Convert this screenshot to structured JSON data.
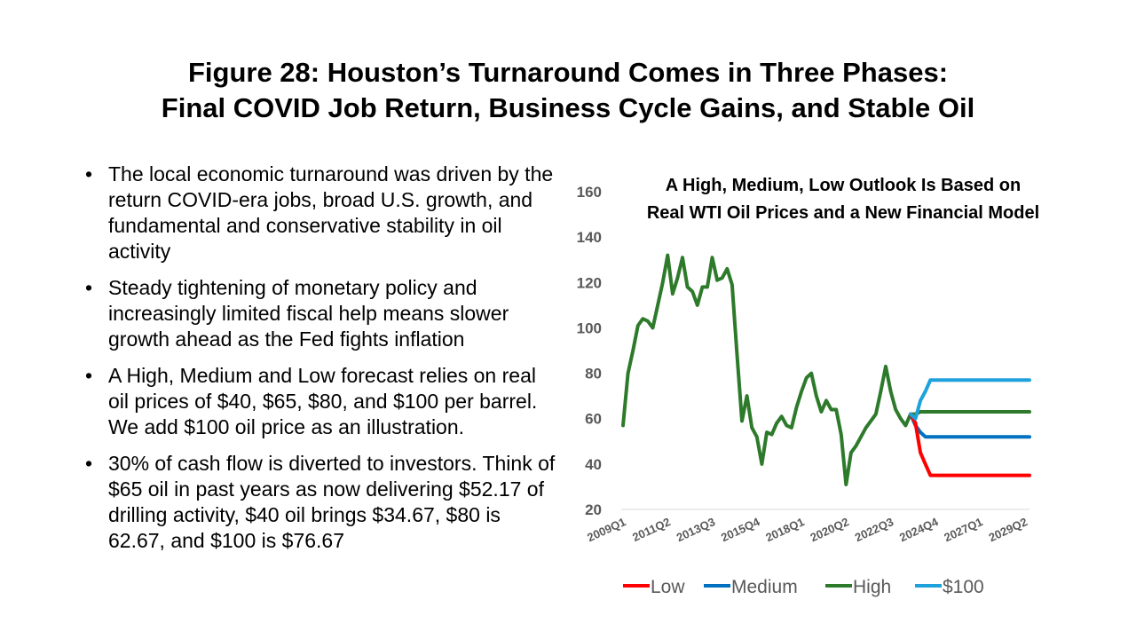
{
  "slide": {
    "title_line1": "Figure 28: Houston’s Turnaround Comes in Three Phases:",
    "title_line2": "Final COVID Job Return, Business Cycle Gains, and Stable Oil",
    "bullets": [
      "The local economic turnaround was driven by the return COVID-era jobs, broad U.S. growth, and fundamental and conservative stability in oil activity",
      "Steady tightening of monetary policy and increasingly limited fiscal help means slower growth ahead as the Fed fights inflation",
      "A High, Medium and Low forecast relies on real oil prices of $40, $65, $80, and $100 per barrel. We add $100 oil price as an illustration.",
      "30% of cash flow is diverted to investors. Think of $65 oil in past years as now delivering $52.17 of drilling activity, $40 oil brings $34.67, $80 is 62.67, and $100 is $76.67"
    ]
  },
  "chart_data": {
    "type": "line",
    "title_line1": "A High, Medium, Low Outlook Is Based on",
    "title_line2": "Real WTI Oil Prices and a New Financial Model",
    "ylim": [
      20,
      160
    ],
    "yticks": [
      20,
      40,
      60,
      80,
      100,
      120,
      140,
      160
    ],
    "xlim": [
      0,
      82
    ],
    "xticks": [
      {
        "i": 0,
        "label": "2009Q1"
      },
      {
        "i": 9,
        "label": "2011Q2"
      },
      {
        "i": 18,
        "label": "2013Q3"
      },
      {
        "i": 27,
        "label": "2015Q4"
      },
      {
        "i": 36,
        "label": "2018Q1"
      },
      {
        "i": 45,
        "label": "2020Q2"
      },
      {
        "i": 54,
        "label": "2022Q3"
      },
      {
        "i": 63,
        "label": "2024Q4"
      },
      {
        "i": 72,
        "label": "2027Q1"
      },
      {
        "i": 81,
        "label": "2029Q2"
      }
    ],
    "grid": false,
    "legend_position": "bottom",
    "series": [
      {
        "name": "Low",
        "color": "#ff0000",
        "x": [
          58,
          59,
          60,
          61,
          62,
          63,
          64,
          66,
          70,
          74,
          78,
          82
        ],
        "values": [
          62,
          58,
          45,
          40,
          35,
          35,
          35,
          35,
          35,
          35,
          35,
          35
        ]
      },
      {
        "name": "Medium",
        "color": "#0070c0",
        "x": [
          58,
          59,
          60,
          61,
          62,
          63,
          64,
          66,
          70,
          74,
          78,
          82
        ],
        "values": [
          62,
          57,
          54,
          52,
          52,
          52,
          52,
          52,
          52,
          52,
          52,
          52
        ]
      },
      {
        "name": "High",
        "color": "#2d7a2b",
        "x": [
          0,
          1,
          2,
          3,
          4,
          5,
          6,
          7,
          8,
          9,
          10,
          11,
          12,
          13,
          14,
          15,
          16,
          17,
          18,
          19,
          20,
          21,
          22,
          23,
          24,
          25,
          26,
          27,
          28,
          29,
          30,
          31,
          32,
          33,
          34,
          35,
          36,
          37,
          38,
          39,
          40,
          41,
          42,
          43,
          44,
          45,
          46,
          47,
          48,
          49,
          50,
          51,
          52,
          53,
          54,
          55,
          56,
          57,
          58,
          59,
          60,
          61,
          62,
          63,
          64,
          66,
          70,
          74,
          78,
          82
        ],
        "values": [
          57,
          80,
          90,
          101,
          104,
          103,
          100,
          110,
          120,
          132,
          115,
          122,
          131,
          118,
          116,
          110,
          118,
          118,
          131,
          121,
          122,
          126,
          119,
          88,
          59,
          70,
          56,
          52,
          40,
          54,
          53,
          58,
          61,
          57,
          56,
          65,
          72,
          78,
          80,
          70,
          63,
          68,
          64,
          64,
          53,
          31,
          45,
          48,
          52,
          56,
          59,
          62,
          72,
          83,
          72,
          64,
          60,
          57,
          62,
          62,
          63,
          63,
          63,
          63,
          63,
          63,
          63,
          63,
          63,
          63
        ]
      },
      {
        "name": "$100",
        "color": "#1fa1db",
        "x": [
          58,
          59,
          60,
          61,
          62,
          63,
          64,
          66,
          70,
          74,
          78,
          82
        ],
        "values": [
          62,
          60,
          68,
          72,
          77,
          77,
          77,
          77,
          77,
          77,
          77,
          77
        ]
      }
    ]
  }
}
